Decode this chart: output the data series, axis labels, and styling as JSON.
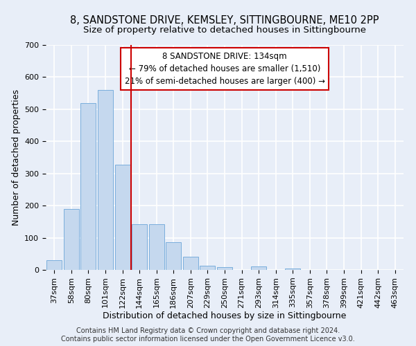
{
  "title_line1": "8, SANDSTONE DRIVE, KEMSLEY, SITTINGBOURNE, ME10 2PP",
  "title_line2": "Size of property relative to detached houses in Sittingbourne",
  "xlabel": "Distribution of detached houses by size in Sittingbourne",
  "ylabel": "Number of detached properties",
  "categories": [
    "37sqm",
    "58sqm",
    "80sqm",
    "101sqm",
    "122sqm",
    "144sqm",
    "165sqm",
    "186sqm",
    "207sqm",
    "229sqm",
    "250sqm",
    "271sqm",
    "293sqm",
    "314sqm",
    "335sqm",
    "357sqm",
    "378sqm",
    "399sqm",
    "421sqm",
    "442sqm",
    "463sqm"
  ],
  "values": [
    30,
    190,
    520,
    560,
    328,
    143,
    143,
    87,
    40,
    13,
    8,
    0,
    10,
    0,
    5,
    0,
    0,
    0,
    0,
    0,
    0
  ],
  "bar_color": "#c5d8ee",
  "bar_edge_color": "#7aaedc",
  "vline_color": "#cc0000",
  "annotation_text": "8 SANDSTONE DRIVE: 134sqm\n← 79% of detached houses are smaller (1,510)\n21% of semi-detached houses are larger (400) →",
  "annotation_box_color": "white",
  "annotation_box_edge_color": "#cc0000",
  "ylim": [
    0,
    700
  ],
  "yticks": [
    0,
    100,
    200,
    300,
    400,
    500,
    600,
    700
  ],
  "background_color": "#e8eef8",
  "grid_color": "white",
  "footer_line1": "Contains HM Land Registry data © Crown copyright and database right 2024.",
  "footer_line2": "Contains public sector information licensed under the Open Government Licence v3.0.",
  "title_fontsize": 10.5,
  "subtitle_fontsize": 9.5,
  "axis_label_fontsize": 9,
  "tick_fontsize": 8,
  "annotation_fontsize": 8.5,
  "footer_fontsize": 7
}
